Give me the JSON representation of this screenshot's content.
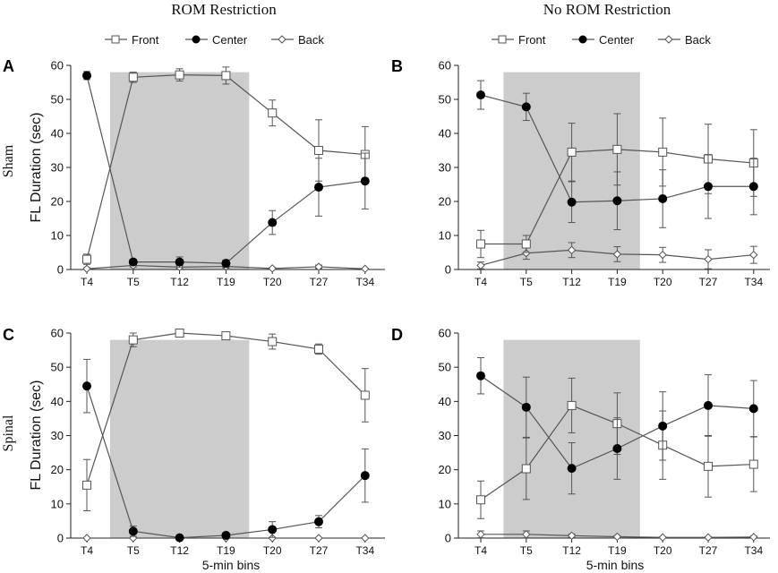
{
  "column_titles": [
    "ROM Restriction",
    "No ROM Restriction"
  ],
  "row_titles": [
    "Sham",
    "Spinal"
  ],
  "legend": {
    "front": "Front",
    "center": "Center",
    "back": "Back"
  },
  "ylabel": "FL Duration (sec)",
  "xlabel": "5-min bins",
  "chart_data": [
    {
      "panel": "A",
      "type": "line",
      "ylim": [
        0,
        60
      ],
      "yticks": [
        0,
        10,
        20,
        30,
        40,
        50,
        60
      ],
      "categories": [
        "T4",
        "T5",
        "T12",
        "T19",
        "T20",
        "T27",
        "T34"
      ],
      "shaded_range": [
        "T5",
        "T19"
      ],
      "series": [
        {
          "name": "Front",
          "values": [
            3,
            56.5,
            57.2,
            57,
            46,
            35,
            33.8
          ],
          "errors": [
            1.5,
            1.5,
            1.8,
            2.5,
            3.8,
            9,
            8.2
          ]
        },
        {
          "name": "Center",
          "values": [
            57,
            2.2,
            2.2,
            1.8,
            13.8,
            24.2,
            26
          ],
          "errors": [
            1.2,
            0.8,
            1.5,
            1,
            3.5,
            8.5,
            8.2
          ]
        },
        {
          "name": "Back",
          "values": [
            0.2,
            1.2,
            0.7,
            0.9,
            0.3,
            0.8,
            0.2
          ],
          "errors": [
            0.3,
            0.5,
            0.5,
            0.5,
            0.3,
            0.5,
            0.2
          ]
        }
      ]
    },
    {
      "panel": "B",
      "type": "line",
      "ylim": [
        0,
        60
      ],
      "yticks": [
        0,
        10,
        20,
        30,
        40,
        50,
        60
      ],
      "categories": [
        "T4",
        "T5",
        "T12",
        "T19",
        "T20",
        "T27",
        "T34"
      ],
      "shaded_range": [
        "T5",
        "T19"
      ],
      "series": [
        {
          "name": "Front",
          "values": [
            7.5,
            7.5,
            34.5,
            35.3,
            34.5,
            32.5,
            31.3
          ],
          "errors": [
            4,
            2.5,
            8.5,
            10.5,
            10,
            10.2,
            9.8
          ]
        },
        {
          "name": "Center",
          "values": [
            51.3,
            47.8,
            19.8,
            20.2,
            20.8,
            24.4,
            24.4
          ],
          "errors": [
            4.2,
            4,
            6,
            8.5,
            8.5,
            9.4,
            8.3
          ]
        },
        {
          "name": "Back",
          "values": [
            1.2,
            4.8,
            5.7,
            4.5,
            4.3,
            3,
            4.3
          ],
          "errors": [
            1,
            1.8,
            2.2,
            2.2,
            2.2,
            2.8,
            2.5
          ]
        }
      ]
    },
    {
      "panel": "C",
      "type": "line",
      "ylim": [
        0,
        60
      ],
      "yticks": [
        0,
        10,
        20,
        30,
        40,
        50,
        60
      ],
      "categories": [
        "T4",
        "T5",
        "T12",
        "T19",
        "T20",
        "T27",
        "T34"
      ],
      "shaded_range": [
        "T5",
        "T19"
      ],
      "series": [
        {
          "name": "Front",
          "values": [
            15.5,
            58,
            60,
            59.2,
            57.5,
            55.3,
            41.8
          ],
          "errors": [
            7.5,
            2,
            0.3,
            0.8,
            2.2,
            1.5,
            7.8
          ]
        },
        {
          "name": "Center",
          "values": [
            44.5,
            2,
            0.1,
            0.8,
            2.5,
            4.8,
            18.3
          ],
          "errors": [
            7.8,
            1.5,
            0.1,
            0.5,
            2.3,
            1.8,
            7.8
          ]
        },
        {
          "name": "Back",
          "values": [
            0,
            0,
            0,
            0,
            0,
            0,
            0
          ],
          "errors": [
            0,
            0,
            0,
            0,
            0,
            0,
            0
          ]
        }
      ]
    },
    {
      "panel": "D",
      "type": "line",
      "ylim": [
        0,
        60
      ],
      "yticks": [
        0,
        10,
        20,
        30,
        40,
        50,
        60
      ],
      "categories": [
        "T4",
        "T5",
        "T12",
        "T19",
        "T20",
        "T27",
        "T34"
      ],
      "shaded_range": [
        "T5",
        "T19"
      ],
      "series": [
        {
          "name": "Front",
          "values": [
            11.2,
            20.3,
            38.8,
            33.5,
            27.2,
            21,
            21.6
          ],
          "errors": [
            5.5,
            9,
            8,
            9,
            10,
            9,
            8
          ]
        },
        {
          "name": "Center",
          "values": [
            47.5,
            38.3,
            20.4,
            26.2,
            32.8,
            38.8,
            37.9
          ],
          "errors": [
            5.3,
            8.8,
            7.5,
            9,
            10,
            9,
            8.2
          ]
        },
        {
          "name": "Back",
          "values": [
            1.1,
            1.1,
            0.7,
            0.4,
            0.2,
            0.2,
            0.3
          ],
          "errors": [
            1,
            1,
            0.5,
            0.3,
            0.2,
            0.2,
            0.3
          ]
        }
      ]
    }
  ]
}
